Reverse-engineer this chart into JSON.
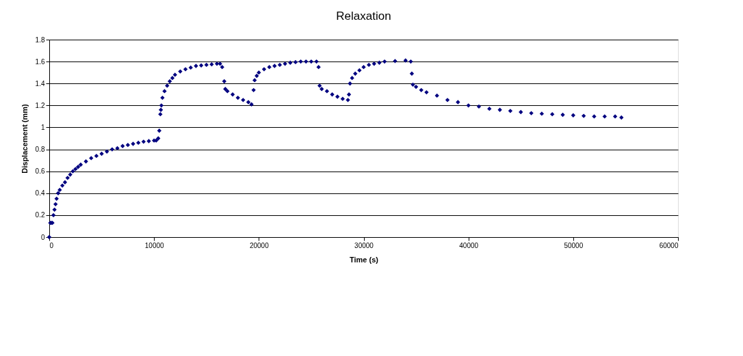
{
  "chart_data": {
    "type": "scatter",
    "title": "Relaxation",
    "xlabel": "Time (s)",
    "ylabel": "Displacement (mm)",
    "x": [
      0,
      100,
      200,
      300,
      400,
      500,
      600,
      700,
      850,
      1000,
      1250,
      1500,
      1750,
      2000,
      2250,
      2500,
      2750,
      3000,
      3500,
      4000,
      4500,
      5000,
      5500,
      6000,
      6500,
      7000,
      7500,
      8000,
      8500,
      9000,
      9500,
      10000,
      10200,
      10400,
      10500,
      10600,
      10650,
      10700,
      10800,
      11000,
      11250,
      11500,
      11750,
      12000,
      12500,
      13000,
      13500,
      14000,
      14500,
      15000,
      15500,
      16000,
      16300,
      16500,
      16700,
      16800,
      17000,
      17500,
      18000,
      18500,
      19000,
      19300,
      19500,
      19600,
      19800,
      20000,
      20500,
      21000,
      21500,
      22000,
      22500,
      23000,
      23500,
      24000,
      24500,
      25000,
      25500,
      25700,
      25800,
      26000,
      26500,
      27000,
      27500,
      28000,
      28500,
      28600,
      28700,
      28900,
      29200,
      29600,
      30000,
      30500,
      31000,
      31500,
      32000,
      33000,
      34000,
      34500,
      34600,
      34700,
      35000,
      35500,
      36000,
      37000,
      38000,
      39000,
      40000,
      41000,
      42000,
      43000,
      44000,
      45000,
      46000,
      47000,
      48000,
      49000,
      50000,
      51000,
      52000,
      53000,
      54000,
      54600
    ],
    "series": [
      {
        "color": "#000080",
        "values": [
          0,
          0.13,
          0.13,
          0.13,
          0.2,
          0.25,
          0.3,
          0.35,
          0.4,
          0.43,
          0.47,
          0.5,
          0.54,
          0.57,
          0.6,
          0.62,
          0.64,
          0.66,
          0.69,
          0.72,
          0.74,
          0.76,
          0.78,
          0.8,
          0.81,
          0.83,
          0.84,
          0.85,
          0.86,
          0.87,
          0.875,
          0.88,
          0.88,
          0.9,
          0.97,
          1.12,
          1.16,
          1.2,
          1.27,
          1.33,
          1.38,
          1.42,
          1.45,
          1.48,
          1.51,
          1.53,
          1.545,
          1.56,
          1.565,
          1.57,
          1.575,
          1.58,
          1.58,
          1.55,
          1.42,
          1.35,
          1.33,
          1.3,
          1.27,
          1.25,
          1.23,
          1.21,
          1.34,
          1.43,
          1.47,
          1.5,
          1.53,
          1.55,
          1.56,
          1.57,
          1.58,
          1.59,
          1.595,
          1.6,
          1.6,
          1.6,
          1.6,
          1.55,
          1.38,
          1.35,
          1.33,
          1.3,
          1.28,
          1.26,
          1.25,
          1.3,
          1.4,
          1.45,
          1.49,
          1.52,
          1.55,
          1.57,
          1.58,
          1.59,
          1.6,
          1.605,
          1.61,
          1.6,
          1.49,
          1.39,
          1.37,
          1.34,
          1.32,
          1.29,
          1.25,
          1.23,
          1.2,
          1.19,
          1.17,
          1.16,
          1.15,
          1.14,
          1.13,
          1.125,
          1.12,
          1.115,
          1.11,
          1.105,
          1.1,
          1.1,
          1.1,
          1.09
        ]
      }
    ],
    "xlim": [
      0,
      60000
    ],
    "xticks": [
      0,
      10000,
      20000,
      30000,
      40000,
      50000,
      60000
    ],
    "ylim": [
      0,
      1.8
    ],
    "yticks": [
      0,
      0.2,
      0.4,
      0.6,
      0.8,
      1,
      1.2,
      1.4,
      1.6,
      1.8
    ],
    "grid": "y",
    "marker": "diamond"
  }
}
